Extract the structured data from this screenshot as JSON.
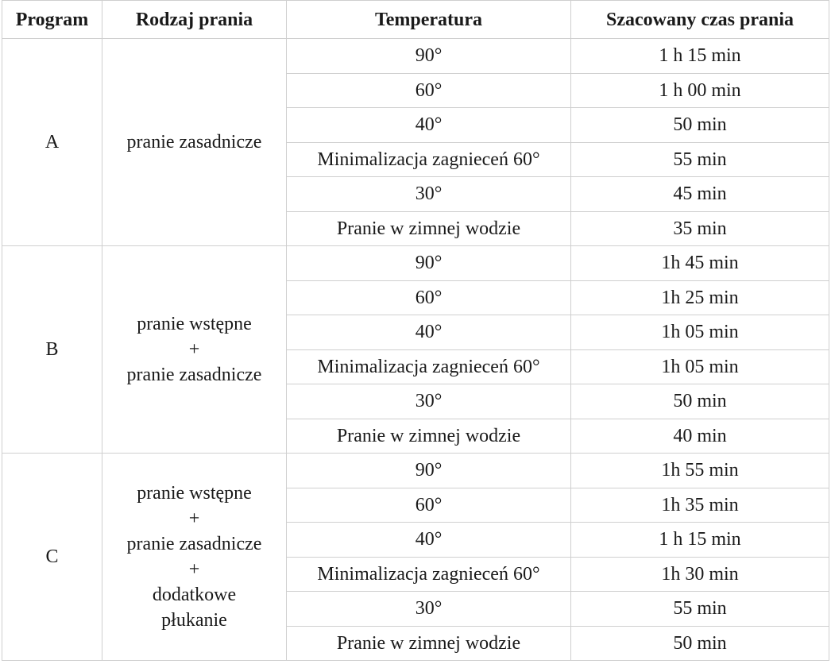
{
  "header": [
    "Program",
    "Rodzaj prania",
    "Temperatura",
    "Szacowany czas prania"
  ],
  "groups": [
    {
      "program": "A",
      "type": [
        "pranie zasadnicze"
      ],
      "rows": [
        [
          "90°",
          "1 h 15 min"
        ],
        [
          "60°",
          "1 h 00 min"
        ],
        [
          "40°",
          "50 min"
        ],
        [
          "Minimalizacja zagnieceń 60°",
          "55 min"
        ],
        [
          "30°",
          "45 min"
        ],
        [
          "Pranie w zimnej wodzie",
          "35 min"
        ]
      ]
    },
    {
      "program": "B",
      "type": [
        "pranie wstępne",
        "+",
        "pranie zasadnicze"
      ],
      "rows": [
        [
          "90°",
          "1h 45 min"
        ],
        [
          "60°",
          "1h 25 min"
        ],
        [
          "40°",
          "1h 05 min"
        ],
        [
          "Minimalizacja zagnieceń 60°",
          "1h 05 min"
        ],
        [
          "30°",
          "50 min"
        ],
        [
          "Pranie w zimnej wodzie",
          "40 min"
        ]
      ]
    },
    {
      "program": "C",
      "type": [
        "pranie wstępne",
        "+",
        "pranie zasadnicze",
        "+",
        "dodatkowe",
        "płukanie"
      ],
      "rows": [
        [
          "90°",
          "1h 55 min"
        ],
        [
          "60°",
          "1h 35 min"
        ],
        [
          "40°",
          "1 h 15 min"
        ],
        [
          "Minimalizacja zagnieceń 60°",
          "1h 30 min"
        ],
        [
          "30°",
          "55 min"
        ],
        [
          "Pranie w zimnej wodzie",
          "50 min"
        ]
      ]
    }
  ]
}
